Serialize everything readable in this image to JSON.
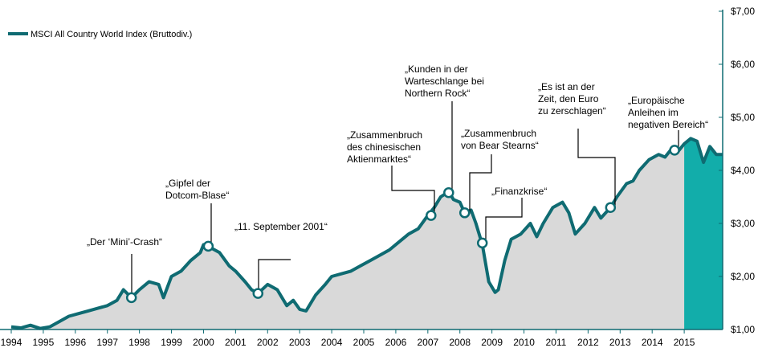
{
  "chart_data": {
    "type": "area",
    "title": "",
    "xlabel": "",
    "ylabel": "",
    "legend": {
      "position": "top-left",
      "label": "MSCI All Country World Index (Bruttodiv.)"
    },
    "x_ticks": [
      "1994",
      "1995",
      "1996",
      "1997",
      "1998",
      "1999",
      "2000",
      "2001",
      "2002",
      "2003",
      "2004",
      "2005",
      "2006",
      "2007",
      "2008",
      "2009",
      "2010",
      "2011",
      "2012",
      "2013",
      "2014",
      "2015"
    ],
    "y_ticks": [
      "$1,00",
      "$2,00",
      "$3,00",
      "$4,00",
      "$5,00",
      "$6,00",
      "$7,00"
    ],
    "xlim": [
      1994.0,
      2016.2
    ],
    "ylim": [
      1.0,
      7.0
    ],
    "grid": false,
    "colors": {
      "line": "#0f6b72",
      "fill": "#d9d9d9",
      "highlight": "#12adaa",
      "axis": "#0f6b72",
      "text": "#000000",
      "marker_fill": "#ffffff"
    },
    "highlight_range": [
      2015.0,
      2016.2
    ],
    "series": [
      {
        "name": "MSCI All Country World Index (Bruttodiv.)",
        "x": [
          1994.0,
          1994.3,
          1994.6,
          1994.9,
          1995.2,
          1995.5,
          1995.8,
          1996.1,
          1996.4,
          1996.7,
          1997.0,
          1997.3,
          1997.5,
          1997.75,
          1998.0,
          1998.3,
          1998.6,
          1998.75,
          1999.0,
          1999.3,
          1999.6,
          1999.9,
          2000.0,
          2000.2,
          2000.5,
          2000.8,
          2001.0,
          2001.3,
          2001.5,
          2001.7,
          2002.0,
          2002.3,
          2002.6,
          2002.8,
          2003.0,
          2003.2,
          2003.5,
          2003.8,
          2004.0,
          2004.3,
          2004.6,
          2004.9,
          2005.2,
          2005.5,
          2005.8,
          2006.1,
          2006.4,
          2006.7,
          2007.0,
          2007.2,
          2007.4,
          2007.65,
          2007.8,
          2008.0,
          2008.15,
          2008.35,
          2008.5,
          2008.7,
          2008.9,
          2009.1,
          2009.2,
          2009.4,
          2009.6,
          2009.9,
          2010.2,
          2010.4,
          2010.6,
          2010.9,
          2011.2,
          2011.4,
          2011.6,
          2011.9,
          2012.2,
          2012.4,
          2012.7,
          2012.9,
          2013.2,
          2013.4,
          2013.6,
          2013.9,
          2014.2,
          2014.4,
          2014.6,
          2014.8,
          2015.0,
          2015.2,
          2015.4,
          2015.6,
          2015.8,
          2016.0,
          2016.2
        ],
        "values": [
          1.05,
          1.03,
          1.08,
          1.02,
          1.05,
          1.15,
          1.25,
          1.3,
          1.35,
          1.4,
          1.45,
          1.55,
          1.75,
          1.6,
          1.75,
          1.9,
          1.85,
          1.6,
          2.0,
          2.1,
          2.3,
          2.45,
          2.6,
          2.55,
          2.45,
          2.2,
          2.1,
          1.9,
          1.75,
          1.68,
          1.85,
          1.75,
          1.45,
          1.55,
          1.38,
          1.35,
          1.65,
          1.85,
          2.0,
          2.05,
          2.1,
          2.2,
          2.3,
          2.4,
          2.5,
          2.65,
          2.8,
          2.9,
          3.15,
          3.3,
          3.5,
          3.6,
          3.45,
          3.4,
          3.2,
          3.25,
          3.0,
          2.6,
          1.9,
          1.7,
          1.75,
          2.3,
          2.7,
          2.8,
          3.0,
          2.75,
          3.0,
          3.3,
          3.4,
          3.2,
          2.8,
          3.0,
          3.3,
          3.1,
          3.3,
          3.5,
          3.75,
          3.8,
          4.0,
          4.2,
          4.3,
          4.25,
          4.4,
          4.35,
          4.5,
          4.6,
          4.55,
          4.15,
          4.45,
          4.3,
          4.3
        ]
      }
    ],
    "markers": [
      {
        "x": 1997.75,
        "y": 1.6
      },
      {
        "x": 2000.15,
        "y": 2.57
      },
      {
        "x": 2001.7,
        "y": 1.68
      },
      {
        "x": 2007.1,
        "y": 3.15
      },
      {
        "x": 2007.65,
        "y": 3.58
      },
      {
        "x": 2008.15,
        "y": 3.2
      },
      {
        "x": 2008.7,
        "y": 2.63
      },
      {
        "x": 2012.7,
        "y": 3.3
      },
      {
        "x": 2014.7,
        "y": 4.38
      }
    ],
    "annotations": [
      {
        "lines": [
          "„Der ‘Mini’-Crash“"
        ]
      },
      {
        "lines": [
          "„Gipfel der",
          "Dotcom-Blase“"
        ]
      },
      {
        "lines": [
          "„11. September 2001“"
        ]
      },
      {
        "lines": [
          "„Zusammenbruch",
          "des chinesischen",
          "Aktienmarktes“"
        ]
      },
      {
        "lines": [
          "„Kunden in der",
          "Warteschlange bei",
          "Northern Rock“"
        ]
      },
      {
        "lines": [
          "„Zusammenbruch",
          "von Bear Stearns“"
        ]
      },
      {
        "lines": [
          "„Finanzkrise“"
        ]
      },
      {
        "lines": [
          "„Es ist an der",
          "Zeit, den Euro",
          "zu zerschlagen“"
        ]
      },
      {
        "lines": [
          "„Europäische",
          "Anleihen im",
          "negativen Bereich“"
        ]
      }
    ]
  }
}
